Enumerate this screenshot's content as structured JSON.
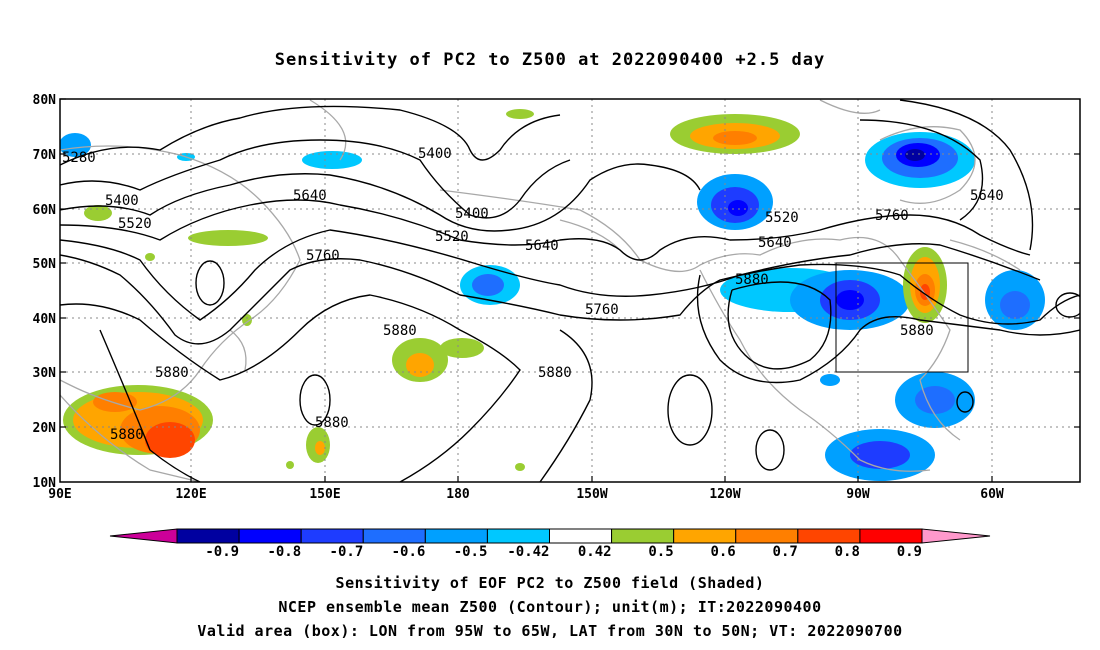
{
  "title": "Sensitivity of PC2 to Z500 at 2022090400 +2.5 day",
  "lat_labels": [
    "80N",
    "70N",
    "60N",
    "50N",
    "40N",
    "30N",
    "20N",
    "10N"
  ],
  "lon_labels": [
    "90E",
    "120E",
    "150E",
    "180",
    "150W",
    "120W",
    "90W",
    "60W"
  ],
  "contour_labels": [
    "5280",
    "5400",
    "5400",
    "5400",
    "5520",
    "5520",
    "5520",
    "5640",
    "5640",
    "5640",
    "5640",
    "5760",
    "5760",
    "5760",
    "5880",
    "5880",
    "5880",
    "5880",
    "5880",
    "5880",
    "5880"
  ],
  "colorbar": {
    "labels": [
      "-0.9",
      "-0.8",
      "-0.7",
      "-0.6",
      "-0.5",
      "-0.42",
      "0.42",
      "0.5",
      "0.6",
      "0.7",
      "0.8",
      "0.9"
    ],
    "colors": [
      "#0000a0",
      "#0000ff",
      "#1e3cff",
      "#1e6eff",
      "#00a0ff",
      "#00c8ff",
      "#ffffff",
      "#9acd32",
      "#ffa500",
      "#ff7f00",
      "#ff4500",
      "#ff0000"
    ],
    "low_end_color": "#cc0099",
    "high_end_color": "#ff99cc"
  },
  "captions": [
    "Sensitivity of EOF PC2 to Z500 field (Shaded)",
    "NCEP ensemble mean Z500 (Contour); unit(m); IT:2022090400",
    "Valid area (box): LON from 95W to 65W, LAT from 30N to 50N; VT: 2022090700"
  ],
  "valid_box": {
    "lon_range": [
      "95W",
      "65W"
    ],
    "lat_range": [
      "30N",
      "50N"
    ]
  }
}
